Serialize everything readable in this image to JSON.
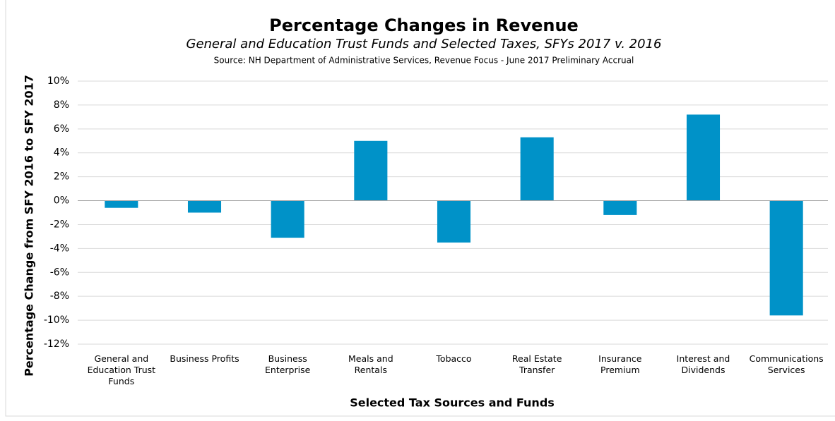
{
  "chart_data": {
    "type": "bar",
    "title": "Percentage Changes in Revenue",
    "subtitle": "General and Education Trust Funds and Selected Taxes, SFYs 2017 v. 2016",
    "source": "Source: NH Department of Administrative Services, Revenue Focus - June 2017 Preliminary Accrual",
    "x_label": "Selected Tax Sources and Funds",
    "y_label": "Percentage Change from SFY 2016 to SFY 2017",
    "categories": [
      "General and Education Trust Funds",
      "Business Profits",
      "Business Enterprise",
      "Meals and Rentals",
      "Tobacco",
      "Real Estate Transfer",
      "Insurance Premium",
      "Interest and Dividends",
      "Communications Services"
    ],
    "values": [
      -0.6,
      -1.0,
      -3.1,
      5.0,
      -3.5,
      5.3,
      -1.2,
      7.2,
      -9.6
    ],
    "color": "#0092c8",
    "ylim": [
      -12,
      10
    ],
    "yticks": [
      {
        "value": -12,
        "label": "-12%"
      },
      {
        "value": -10,
        "label": "-10%"
      },
      {
        "value": -8,
        "label": "-8%"
      },
      {
        "value": -6,
        "label": "-6%"
      },
      {
        "value": -4,
        "label": "-4%"
      },
      {
        "value": -2,
        "label": "-2%"
      },
      {
        "value": 0,
        "label": "0%"
      },
      {
        "value": 2,
        "label": "2%"
      },
      {
        "value": 4,
        "label": "4%"
      },
      {
        "value": 6,
        "label": "6%"
      },
      {
        "value": 8,
        "label": "8%"
      },
      {
        "value": 10,
        "label": "10%"
      }
    ],
    "grid": true
  }
}
